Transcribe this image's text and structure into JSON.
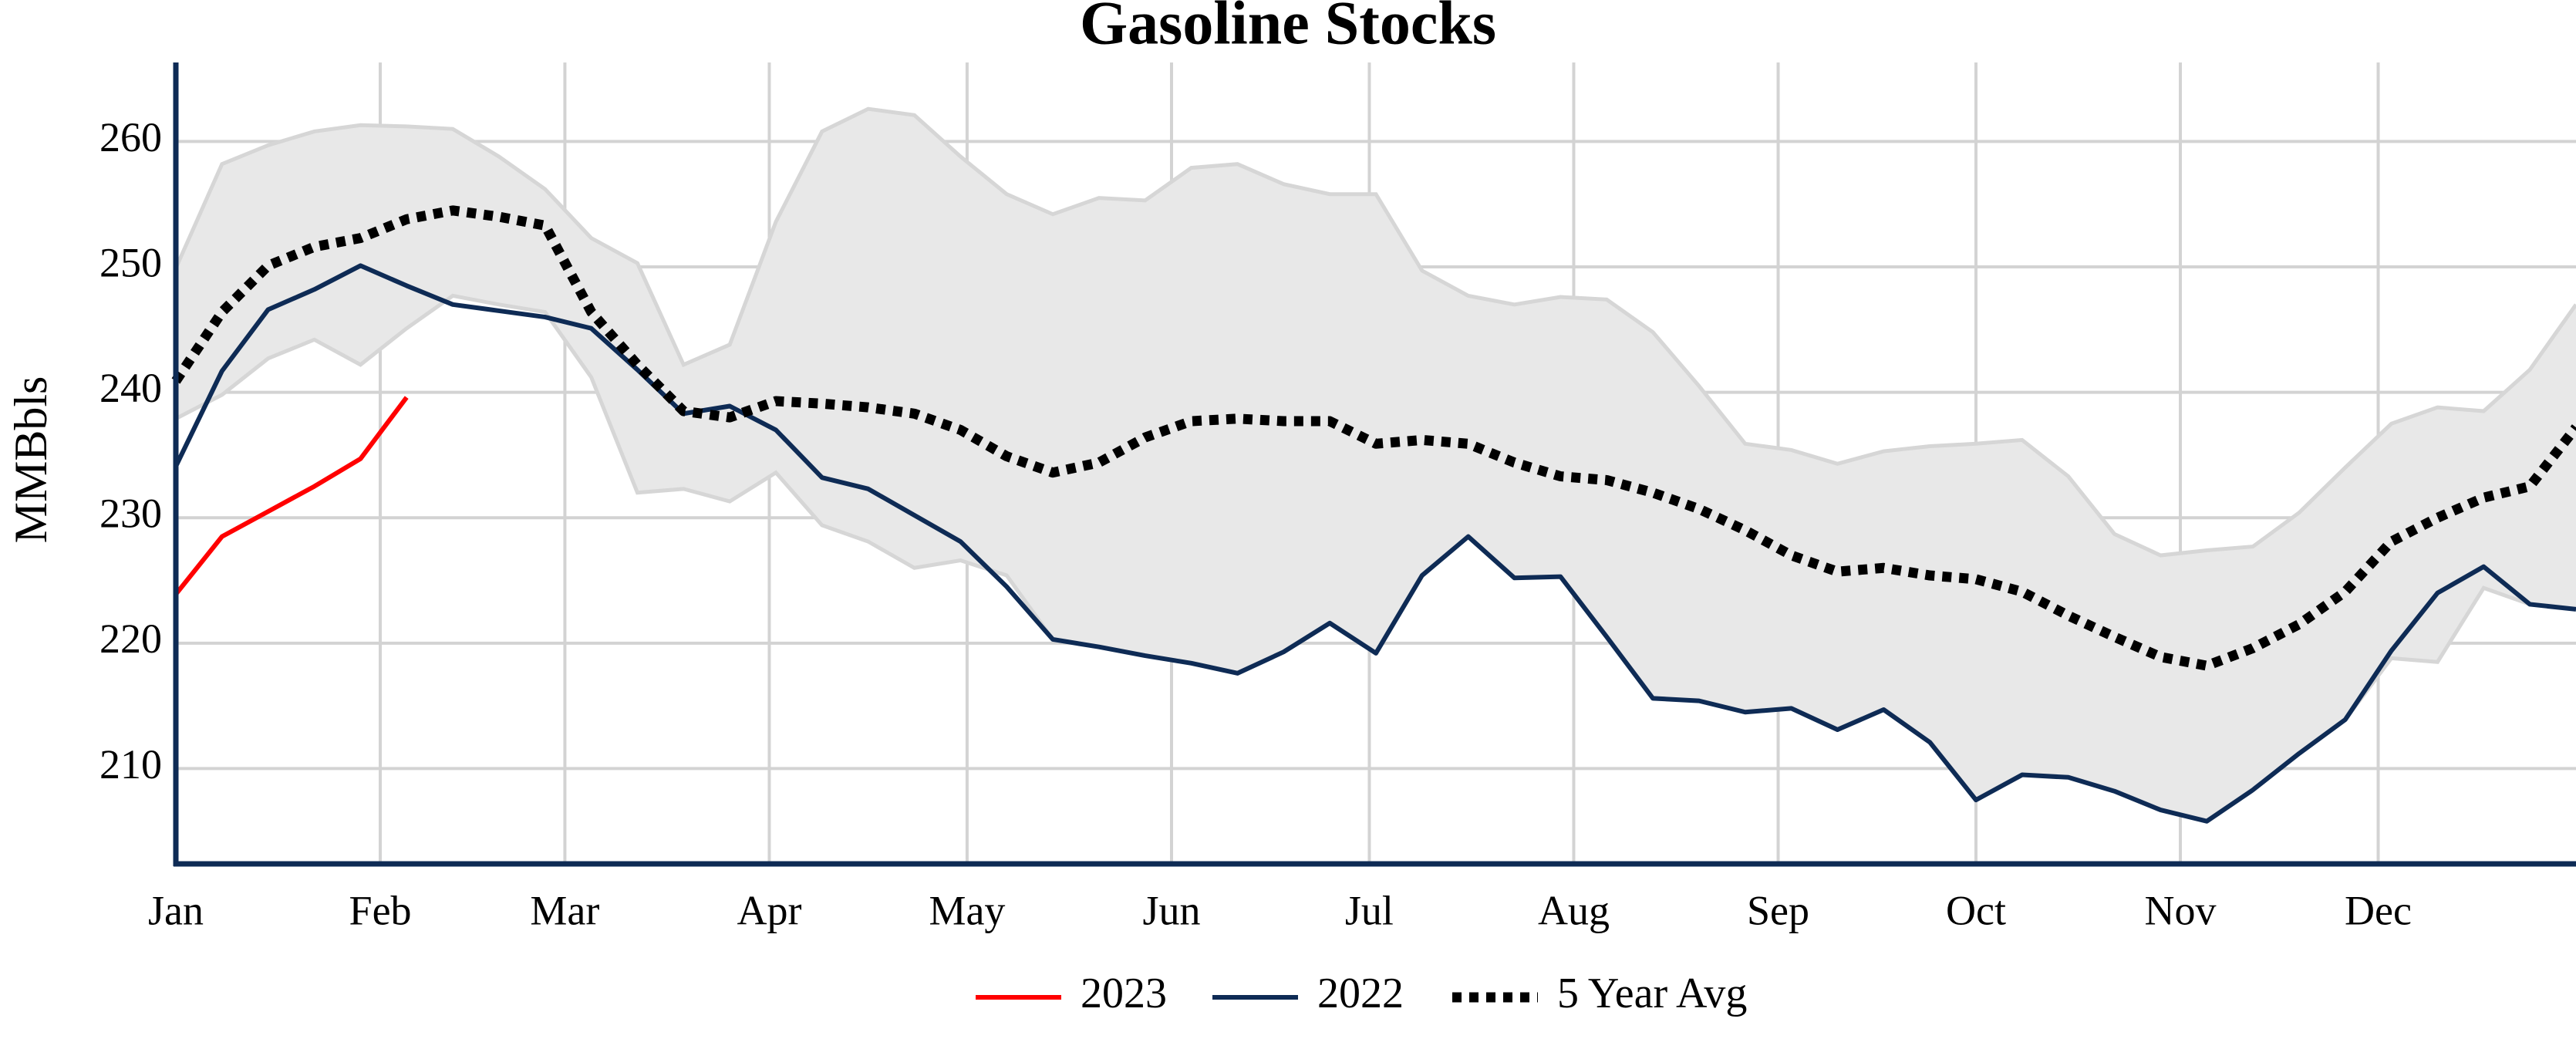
{
  "chart_data": {
    "type": "line",
    "title": "Gasoline Stocks",
    "y_label": "MMBbls",
    "x": [
      0,
      7,
      14,
      21,
      28,
      35,
      42,
      49,
      56,
      63,
      70,
      77,
      84,
      91,
      98,
      105,
      112,
      119,
      126,
      133,
      140,
      147,
      154,
      161,
      168,
      175,
      182,
      189,
      196,
      203,
      210,
      217,
      224,
      231,
      238,
      245,
      252,
      259,
      266,
      273,
      280,
      287,
      294,
      301,
      308,
      315,
      322,
      329,
      336,
      343,
      350,
      357,
      364
    ],
    "xlim": [
      0,
      364
    ],
    "xticks": [
      {
        "value": 0,
        "label": "Jan"
      },
      {
        "value": 31,
        "label": "Feb"
      },
      {
        "value": 59,
        "label": "Mar"
      },
      {
        "value": 90,
        "label": "Apr"
      },
      {
        "value": 120,
        "label": "May"
      },
      {
        "value": 151,
        "label": "Jun"
      },
      {
        "value": 181,
        "label": "Jul"
      },
      {
        "value": 212,
        "label": "Aug"
      },
      {
        "value": 243,
        "label": "Sep"
      },
      {
        "value": 273,
        "label": "Oct"
      },
      {
        "value": 304,
        "label": "Nov"
      },
      {
        "value": 334,
        "label": "Dec"
      }
    ],
    "ylim": [
      202.4,
      266.3
    ],
    "yticks": [
      210,
      220,
      230,
      240,
      250,
      260
    ],
    "grid": true,
    "band": {
      "color": "#e8e8e8",
      "edge_color": "#d6d6d6",
      "upper": [
        249.9,
        258.2,
        259.7,
        260.8,
        261.3,
        261.2,
        261.0,
        258.8,
        256.2,
        252.3,
        250.3,
        242.2,
        243.8,
        253.6,
        260.8,
        262.6,
        262.1,
        258.8,
        255.8,
        254.2,
        255.5,
        255.3,
        257.9,
        258.2,
        256.6,
        255.8,
        255.8,
        249.7,
        247.7,
        247.0,
        247.6,
        247.4,
        244.8,
        240.5,
        235.9,
        235.4,
        234.3,
        235.3,
        235.7,
        235.9,
        236.2,
        233.3,
        228.7,
        227.0,
        227.4,
        227.7,
        230.4,
        234.0,
        237.5,
        238.8,
        238.5,
        241.8,
        247.0
      ],
      "lower": [
        237.9,
        239.8,
        242.7,
        244.2,
        242.2,
        245.1,
        247.7,
        247.0,
        246.4,
        241.2,
        232.0,
        232.3,
        231.3,
        233.6,
        229.4,
        228.1,
        226.0,
        226.6,
        225.4,
        220.3,
        219.7,
        219.0,
        218.4,
        217.6,
        219.3,
        221.6,
        219.2,
        225.4,
        228.5,
        225.2,
        225.3,
        220.5,
        215.6,
        215.4,
        214.5,
        214.8,
        213.1,
        214.7,
        212.1,
        207.5,
        209.5,
        209.3,
        208.2,
        206.7,
        205.8,
        208.3,
        211.2,
        213.9,
        218.8,
        218.5,
        224.4,
        223.1,
        222.7
      ]
    },
    "series": [
      {
        "name": "2023",
        "color": "#ff0000",
        "dash": "solid",
        "values": [
          223.9,
          228.5,
          230.5,
          232.5,
          234.7,
          239.6,
          null,
          null,
          null,
          null,
          null,
          null,
          null,
          null,
          null,
          null,
          null,
          null,
          null,
          null,
          null,
          null,
          null,
          null,
          null,
          null,
          null,
          null,
          null,
          null,
          null,
          null,
          null,
          null,
          null,
          null,
          null,
          null,
          null,
          null,
          null,
          null,
          null,
          null,
          null,
          null,
          null,
          null,
          null,
          null,
          null,
          null,
          null
        ]
      },
      {
        "name": "2022",
        "color": "#0e2b55",
        "dash": "solid",
        "values": [
          234.1,
          241.7,
          246.6,
          248.2,
          250.1,
          248.5,
          247.0,
          246.5,
          246.0,
          245.1,
          241.8,
          238.3,
          238.9,
          237.0,
          233.2,
          232.3,
          230.2,
          228.1,
          224.5,
          220.3,
          219.7,
          219.0,
          218.4,
          217.6,
          219.3,
          221.6,
          219.2,
          225.4,
          228.5,
          225.2,
          225.3,
          220.5,
          215.6,
          215.4,
          214.5,
          214.8,
          213.1,
          214.7,
          212.1,
          207.5,
          209.5,
          209.3,
          208.2,
          206.7,
          205.8,
          208.3,
          211.2,
          213.9,
          219.4,
          224.0,
          226.1,
          223.1,
          222.7
        ]
      },
      {
        "name": "5 Year Avg",
        "color": "#000000",
        "dash": "dot",
        "values": [
          240.9,
          246.4,
          250.1,
          251.6,
          252.3,
          253.8,
          254.5,
          254.0,
          253.3,
          246.4,
          242.2,
          238.5,
          238.0,
          239.3,
          239.1,
          238.8,
          238.3,
          237.0,
          234.9,
          233.6,
          234.4,
          236.4,
          237.7,
          237.9,
          237.7,
          237.7,
          235.9,
          236.2,
          235.9,
          234.4,
          233.3,
          233.0,
          232.0,
          230.7,
          229.0,
          227.0,
          225.7,
          226.0,
          225.4,
          225.1,
          224.1,
          222.2,
          220.5,
          218.9,
          218.2,
          219.6,
          221.5,
          224.1,
          228.1,
          230.0,
          231.6,
          232.5,
          237.2
        ]
      }
    ]
  }
}
